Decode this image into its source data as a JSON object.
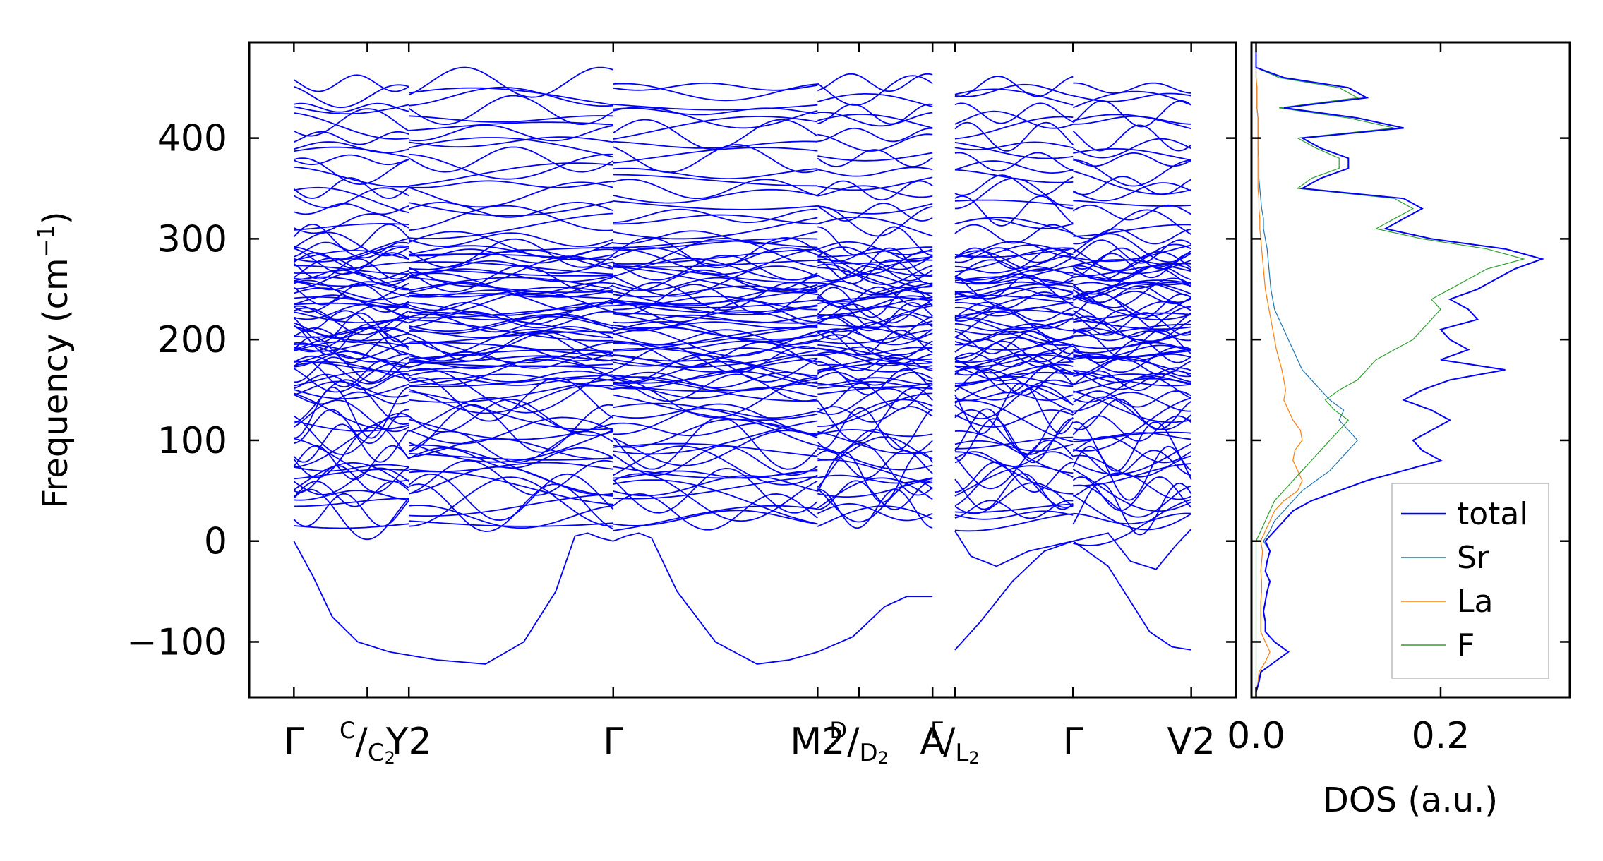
{
  "chart_data": [
    {
      "type": "line",
      "title": "",
      "ylabel_main": "Frequency (cm",
      "ylabel_sup": "−1",
      "ylabel_close": ")",
      "ylim": [
        -155,
        495
      ],
      "yticks": [
        -100,
        0,
        100,
        200,
        300,
        400
      ],
      "ytick_labels": [
        "−100",
        "0",
        "100",
        "200",
        "300",
        "400"
      ],
      "line_color": "#0000ff",
      "segments": [
        {
          "path": "Γ–C2–Y2",
          "x_range": [
            0,
            0.36
          ]
        },
        {
          "path": "Y2–Γ",
          "x_range": [
            0.36,
            1.0
          ]
        },
        {
          "path": "Γ–M2",
          "x_range": [
            1.0,
            1.64
          ]
        },
        {
          "path": "M2–D2–A",
          "x_range": [
            1.64,
            2.0
          ]
        },
        {
          "path": "L2–Γ",
          "x_range": [
            2.07,
            2.44
          ]
        },
        {
          "path": "Γ–V2",
          "x_range": [
            2.44,
            2.81
          ]
        }
      ],
      "xticks": [
        0,
        0.23,
        0.36,
        1.0,
        1.64,
        1.77,
        2.0,
        2.07,
        2.44,
        2.81
      ],
      "xtick_labels": [
        {
          "text": "Γ"
        },
        {
          "text": "",
          "sup": "C",
          "sep": "/",
          "sub": "C",
          "sub2": "2"
        },
        {
          "text": "Y",
          "tail": "2"
        },
        {
          "text": "Γ"
        },
        {
          "text": "M",
          "tail": "2"
        },
        {
          "text": "",
          "sup": "D",
          "sep": "/",
          "sub": "D",
          "sub2": "2"
        },
        {
          "text": "A"
        },
        {
          "text": "",
          "sup": "Γ",
          "sep": "/",
          "sub": "L",
          "sub2": "2"
        },
        {
          "text": "Γ"
        },
        {
          "text": "V",
          "tail": "2"
        }
      ],
      "acoustic_branches": [
        {
          "x": [
            0,
            0.06,
            0.12,
            0.2,
            0.3,
            0.45,
            0.6,
            0.72,
            0.82,
            0.88,
            0.92,
            0.96,
            1.0
          ],
          "y": [
            0,
            -35,
            -75,
            -100,
            -110,
            -118,
            -122,
            -100,
            -50,
            5,
            8,
            3,
            0
          ]
        },
        {
          "x": [
            1.0,
            1.04,
            1.08,
            1.12,
            1.2,
            1.32,
            1.45,
            1.55,
            1.64,
            1.75,
            1.85,
            1.92,
            2.0
          ],
          "y": [
            0,
            5,
            8,
            3,
            -50,
            -100,
            -122,
            -118,
            -110,
            -95,
            -65,
            -55,
            -55
          ]
        },
        {
          "x": [
            2.07,
            2.15,
            2.25,
            2.35,
            2.44,
            2.55,
            2.68,
            2.75,
            2.81
          ],
          "y": [
            -108,
            -80,
            -40,
            -10,
            0,
            -25,
            -90,
            -105,
            -108
          ]
        },
        {
          "x": [
            2.07,
            2.12,
            2.2,
            2.3,
            2.44,
            2.55,
            2.62,
            2.7,
            2.76,
            2.81
          ],
          "y": [
            10,
            -15,
            -25,
            -10,
            0,
            8,
            -20,
            -28,
            -5,
            12
          ]
        }
      ],
      "optical_band_count": 96
    },
    {
      "type": "line",
      "xlabel": "DOS (a.u.)",
      "xlim": [
        -0.005,
        0.34
      ],
      "xticks": [
        0.0,
        0.2
      ],
      "xtick_labels": [
        "0.0",
        "0.2"
      ],
      "ylim": [
        -155,
        495
      ],
      "legend": "bottom-right",
      "series": [
        {
          "name": "total",
          "color": "#0000ff"
        },
        {
          "name": "Sr",
          "color": "#1f77b4"
        },
        {
          "name": "La",
          "color": "#ff7f0e"
        },
        {
          "name": "F",
          "color": "#2ca02c"
        }
      ],
      "freq": [
        -150,
        -140,
        -130,
        -120,
        -110,
        -100,
        -90,
        -80,
        -70,
        -60,
        -50,
        -40,
        -30,
        -20,
        -10,
        0,
        10,
        20,
        30,
        40,
        50,
        60,
        70,
        80,
        90,
        100,
        110,
        120,
        130,
        140,
        150,
        160,
        170,
        180,
        190,
        200,
        210,
        220,
        230,
        240,
        250,
        260,
        270,
        280,
        290,
        300,
        310,
        320,
        330,
        340,
        350,
        360,
        370,
        380,
        390,
        400,
        410,
        420,
        430,
        440,
        450,
        460,
        470,
        480,
        490
      ],
      "total": [
        0.0,
        0.003,
        0.005,
        0.02,
        0.035,
        0.02,
        0.01,
        0.01,
        0.008,
        0.01,
        0.012,
        0.015,
        0.01,
        0.012,
        0.015,
        0.01,
        0.02,
        0.03,
        0.04,
        0.06,
        0.09,
        0.12,
        0.16,
        0.2,
        0.18,
        0.17,
        0.19,
        0.21,
        0.19,
        0.16,
        0.18,
        0.21,
        0.27,
        0.2,
        0.23,
        0.21,
        0.2,
        0.24,
        0.23,
        0.21,
        0.24,
        0.26,
        0.28,
        0.31,
        0.27,
        0.19,
        0.14,
        0.16,
        0.18,
        0.16,
        0.05,
        0.07,
        0.1,
        0.1,
        0.07,
        0.05,
        0.16,
        0.11,
        0.03,
        0.12,
        0.1,
        0.03,
        0.0,
        0.0,
        0.0
      ],
      "Sr": [
        0.0,
        0.003,
        0.005,
        0.02,
        0.035,
        0.02,
        0.01,
        0.01,
        0.008,
        0.01,
        0.012,
        0.015,
        0.01,
        0.012,
        0.015,
        0.008,
        0.015,
        0.02,
        0.03,
        0.04,
        0.05,
        0.065,
        0.08,
        0.09,
        0.1,
        0.11,
        0.1,
        0.09,
        0.095,
        0.08,
        0.07,
        0.06,
        0.05,
        0.045,
        0.04,
        0.035,
        0.03,
        0.025,
        0.02,
        0.018,
        0.016,
        0.015,
        0.014,
        0.013,
        0.012,
        0.01,
        0.008,
        0.008,
        0.006,
        0.005,
        0.004,
        0.003,
        0.003,
        0.003,
        0.002,
        0.002,
        0.002,
        0.002,
        0.001,
        0.001,
        0.001,
        0.0,
        0.0,
        0.0,
        0.0
      ],
      "La": [
        0.0,
        0.002,
        0.003,
        0.01,
        0.015,
        0.01,
        0.005,
        0.005,
        0.005,
        0.005,
        0.006,
        0.006,
        0.005,
        0.006,
        0.007,
        0.005,
        0.01,
        0.015,
        0.02,
        0.03,
        0.045,
        0.05,
        0.045,
        0.04,
        0.042,
        0.05,
        0.048,
        0.04,
        0.035,
        0.03,
        0.032,
        0.03,
        0.028,
        0.025,
        0.022,
        0.02,
        0.018,
        0.016,
        0.014,
        0.012,
        0.01,
        0.009,
        0.008,
        0.007,
        0.006,
        0.005,
        0.004,
        0.004,
        0.003,
        0.003,
        0.002,
        0.002,
        0.002,
        0.002,
        0.002,
        0.002,
        0.002,
        0.002,
        0.001,
        0.001,
        0.001,
        0.0,
        0.0,
        0.0,
        0.0
      ],
      "F": [
        0.0,
        0.0,
        0.0,
        0.0,
        0.0,
        0.0,
        0.0,
        0.0,
        0.0,
        0.0,
        0.0,
        0.0,
        0.0,
        0.0,
        0.0,
        0.0,
        0.005,
        0.01,
        0.015,
        0.02,
        0.03,
        0.04,
        0.05,
        0.06,
        0.07,
        0.08,
        0.09,
        0.1,
        0.085,
        0.075,
        0.09,
        0.11,
        0.12,
        0.13,
        0.15,
        0.17,
        0.18,
        0.19,
        0.2,
        0.19,
        0.21,
        0.23,
        0.25,
        0.29,
        0.25,
        0.18,
        0.13,
        0.15,
        0.17,
        0.15,
        0.045,
        0.06,
        0.09,
        0.09,
        0.065,
        0.045,
        0.15,
        0.1,
        0.025,
        0.11,
        0.09,
        0.025,
        0.0,
        0.0,
        0.0
      ]
    }
  ]
}
